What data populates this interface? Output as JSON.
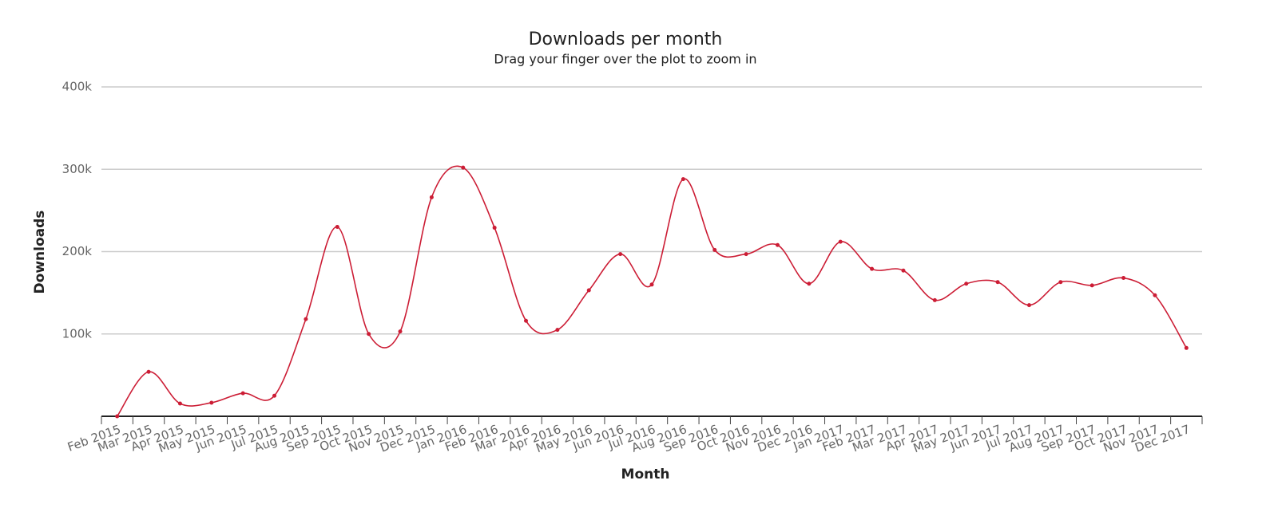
{
  "chart_data": {
    "type": "line",
    "title": "Downloads per month",
    "subtitle": "Drag your finger over the plot to zoom in",
    "x_label": "Month",
    "y_label": "Downloads",
    "categories": [
      "Feb 2015",
      "Mar 2015",
      "Apr 2015",
      "May 2015",
      "Jun 2015",
      "Jul 2015",
      "Aug 2015",
      "Sep 2015",
      "Oct 2015",
      "Nov 2015",
      "Dec 2015",
      "Jan 2016",
      "Feb 2016",
      "Mar 2016",
      "Apr 2016",
      "May 2016",
      "Jun 2016",
      "Jul 2016",
      "Aug 2016",
      "Sep 2016",
      "Oct 2016",
      "Nov 2016",
      "Dec 2016",
      "Jan 2017",
      "Feb 2017",
      "Mar 2017",
      "Apr 2017",
      "May 2017",
      "Jun 2017",
      "Jul 2017",
      "Aug 2017",
      "Sep 2017",
      "Oct 2017",
      "Nov 2017",
      "Dec 2017"
    ],
    "series": [
      {
        "name": "Downloads",
        "color": "#cc1d35",
        "values": [
          0,
          54000,
          15500,
          16500,
          28000,
          25000,
          118000,
          230000,
          100000,
          103000,
          266000,
          302000,
          229000,
          116000,
          105000,
          153000,
          197000,
          160000,
          288000,
          202000,
          197000,
          208000,
          161000,
          212000,
          179000,
          177000,
          141000,
          161000,
          163000,
          135000,
          163000,
          159000,
          168000,
          147000,
          83000
        ]
      }
    ],
    "ylim": [
      0,
      400000
    ],
    "yticks": [
      {
        "value": 100000,
        "label": "100k"
      },
      {
        "value": 200000,
        "label": "200k"
      },
      {
        "value": 300000,
        "label": "300k"
      },
      {
        "value": 400000,
        "label": "400k"
      }
    ],
    "grid": true
  }
}
